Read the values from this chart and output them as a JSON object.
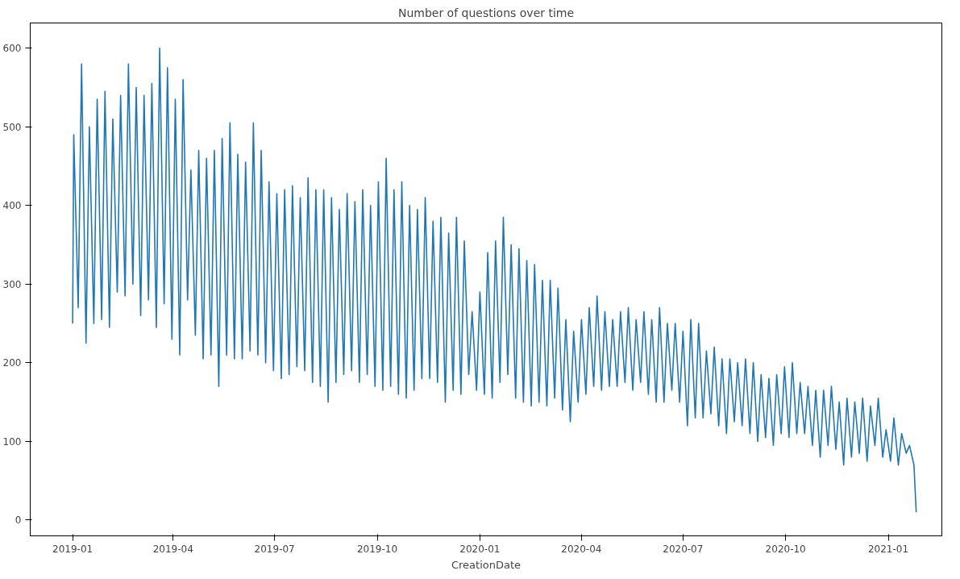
{
  "chart_data": {
    "type": "line",
    "title": "Number of questions over time",
    "xlabel": "CreationDate",
    "xlim": [
      "2018-11-24",
      "2021-02-18"
    ],
    "ylim": [
      -20,
      632
    ],
    "xticks": [
      {
        "value": "2019-01-01",
        "label": "2019-01"
      },
      {
        "value": "2019-04-01",
        "label": "2019-04"
      },
      {
        "value": "2019-07-01",
        "label": "2019-07"
      },
      {
        "value": "2019-10-01",
        "label": "2019-10"
      },
      {
        "value": "2020-01-01",
        "label": "2020-01"
      },
      {
        "value": "2020-04-01",
        "label": "2020-04"
      },
      {
        "value": "2020-07-01",
        "label": "2020-07"
      },
      {
        "value": "2020-10-01",
        "label": "2020-10"
      },
      {
        "value": "2021-01-01",
        "label": "2021-01"
      }
    ],
    "yticks": [
      0,
      100,
      200,
      300,
      400,
      500,
      600
    ],
    "grid": false,
    "series": [
      {
        "color": "#1f77b4",
        "x": [
          "2019-01-01",
          "2019-01-02",
          "2019-01-06",
          "2019-01-09",
          "2019-01-13",
          "2019-01-16",
          "2019-01-20",
          "2019-01-23",
          "2019-01-27",
          "2019-01-30",
          "2019-02-03",
          "2019-02-06",
          "2019-02-10",
          "2019-02-13",
          "2019-02-17",
          "2019-02-20",
          "2019-02-24",
          "2019-02-27",
          "2019-03-03",
          "2019-03-06",
          "2019-03-10",
          "2019-03-13",
          "2019-03-17",
          "2019-03-20",
          "2019-03-24",
          "2019-03-27",
          "2019-03-31",
          "2019-04-03",
          "2019-04-07",
          "2019-04-10",
          "2019-04-14",
          "2019-04-17",
          "2019-04-21",
          "2019-04-24",
          "2019-04-28",
          "2019-05-01",
          "2019-05-05",
          "2019-05-08",
          "2019-05-12",
          "2019-05-15",
          "2019-05-19",
          "2019-05-22",
          "2019-05-26",
          "2019-05-29",
          "2019-06-02",
          "2019-06-05",
          "2019-06-09",
          "2019-06-12",
          "2019-06-16",
          "2019-06-19",
          "2019-06-23",
          "2019-06-26",
          "2019-06-30",
          "2019-07-03",
          "2019-07-07",
          "2019-07-10",
          "2019-07-14",
          "2019-07-17",
          "2019-07-21",
          "2019-07-24",
          "2019-07-28",
          "2019-07-31",
          "2019-08-04",
          "2019-08-07",
          "2019-08-11",
          "2019-08-14",
          "2019-08-18",
          "2019-08-21",
          "2019-08-25",
          "2019-08-28",
          "2019-09-01",
          "2019-09-04",
          "2019-09-08",
          "2019-09-11",
          "2019-09-15",
          "2019-09-18",
          "2019-09-22",
          "2019-09-25",
          "2019-09-29",
          "2019-10-02",
          "2019-10-06",
          "2019-10-09",
          "2019-10-13",
          "2019-10-16",
          "2019-10-20",
          "2019-10-23",
          "2019-10-27",
          "2019-10-30",
          "2019-11-03",
          "2019-11-06",
          "2019-11-10",
          "2019-11-13",
          "2019-11-17",
          "2019-11-20",
          "2019-11-24",
          "2019-11-27",
          "2019-12-01",
          "2019-12-04",
          "2019-12-08",
          "2019-12-11",
          "2019-12-15",
          "2019-12-18",
          "2019-12-22",
          "2019-12-25",
          "2019-12-29",
          "2020-01-01",
          "2020-01-05",
          "2020-01-08",
          "2020-01-12",
          "2020-01-15",
          "2020-01-19",
          "2020-01-22",
          "2020-01-26",
          "2020-01-29",
          "2020-02-02",
          "2020-02-05",
          "2020-02-09",
          "2020-02-12",
          "2020-02-16",
          "2020-02-19",
          "2020-02-23",
          "2020-02-26",
          "2020-03-01",
          "2020-03-04",
          "2020-03-08",
          "2020-03-11",
          "2020-03-15",
          "2020-03-18",
          "2020-03-22",
          "2020-03-25",
          "2020-03-29",
          "2020-04-01",
          "2020-04-05",
          "2020-04-08",
          "2020-04-12",
          "2020-04-15",
          "2020-04-19",
          "2020-04-22",
          "2020-04-26",
          "2020-04-29",
          "2020-05-03",
          "2020-05-06",
          "2020-05-10",
          "2020-05-13",
          "2020-05-17",
          "2020-05-20",
          "2020-05-24",
          "2020-05-27",
          "2020-05-31",
          "2020-06-03",
          "2020-06-07",
          "2020-06-10",
          "2020-06-14",
          "2020-06-17",
          "2020-06-21",
          "2020-06-24",
          "2020-06-28",
          "2020-07-01",
          "2020-07-05",
          "2020-07-08",
          "2020-07-12",
          "2020-07-15",
          "2020-07-19",
          "2020-07-22",
          "2020-07-26",
          "2020-07-29",
          "2020-08-02",
          "2020-08-05",
          "2020-08-09",
          "2020-08-12",
          "2020-08-16",
          "2020-08-19",
          "2020-08-23",
          "2020-08-26",
          "2020-08-30",
          "2020-09-02",
          "2020-09-06",
          "2020-09-09",
          "2020-09-13",
          "2020-09-16",
          "2020-09-20",
          "2020-09-23",
          "2020-09-27",
          "2020-09-30",
          "2020-10-04",
          "2020-10-07",
          "2020-10-11",
          "2020-10-14",
          "2020-10-18",
          "2020-10-21",
          "2020-10-25",
          "2020-10-28",
          "2020-11-01",
          "2020-11-04",
          "2020-11-08",
          "2020-11-11",
          "2020-11-15",
          "2020-11-18",
          "2020-11-22",
          "2020-11-25",
          "2020-11-29",
          "2020-12-02",
          "2020-12-06",
          "2020-12-09",
          "2020-12-13",
          "2020-12-16",
          "2020-12-20",
          "2020-12-23",
          "2020-12-27",
          "2020-12-30",
          "2021-01-03",
          "2021-01-06",
          "2021-01-10",
          "2021-01-13",
          "2021-01-17",
          "2021-01-20",
          "2021-01-24",
          "2021-01-26"
        ],
        "values": [
          250,
          490,
          270,
          580,
          225,
          500,
          250,
          535,
          255,
          545,
          245,
          510,
          290,
          540,
          285,
          580,
          300,
          550,
          260,
          540,
          280,
          555,
          245,
          600,
          275,
          575,
          230,
          535,
          210,
          560,
          280,
          445,
          235,
          470,
          205,
          460,
          210,
          470,
          170,
          485,
          210,
          505,
          205,
          465,
          205,
          455,
          215,
          505,
          210,
          470,
          200,
          430,
          190,
          415,
          180,
          420,
          185,
          425,
          195,
          410,
          190,
          435,
          175,
          420,
          170,
          420,
          150,
          410,
          175,
          395,
          185,
          415,
          190,
          405,
          175,
          420,
          185,
          400,
          170,
          430,
          165,
          460,
          170,
          420,
          160,
          430,
          155,
          400,
          165,
          395,
          180,
          410,
          180,
          380,
          175,
          385,
          150,
          365,
          165,
          385,
          160,
          355,
          185,
          265,
          165,
          290,
          160,
          340,
          155,
          355,
          175,
          385,
          185,
          350,
          155,
          345,
          150,
          330,
          145,
          325,
          150,
          305,
          145,
          305,
          155,
          295,
          140,
          255,
          125,
          240,
          150,
          255,
          160,
          270,
          170,
          285,
          165,
          265,
          170,
          255,
          170,
          265,
          175,
          270,
          165,
          255,
          175,
          265,
          160,
          255,
          150,
          270,
          150,
          250,
          165,
          250,
          150,
          240,
          120,
          255,
          130,
          250,
          130,
          215,
          135,
          220,
          120,
          205,
          110,
          205,
          125,
          200,
          120,
          205,
          110,
          200,
          100,
          185,
          105,
          180,
          95,
          185,
          110,
          195,
          105,
          200,
          110,
          175,
          110,
          170,
          95,
          165,
          80,
          165,
          95,
          170,
          90,
          150,
          70,
          155,
          80,
          150,
          85,
          155,
          75,
          145,
          95,
          155,
          80,
          115,
          75,
          130,
          70,
          110,
          85,
          95,
          70,
          10
        ]
      }
    ]
  }
}
